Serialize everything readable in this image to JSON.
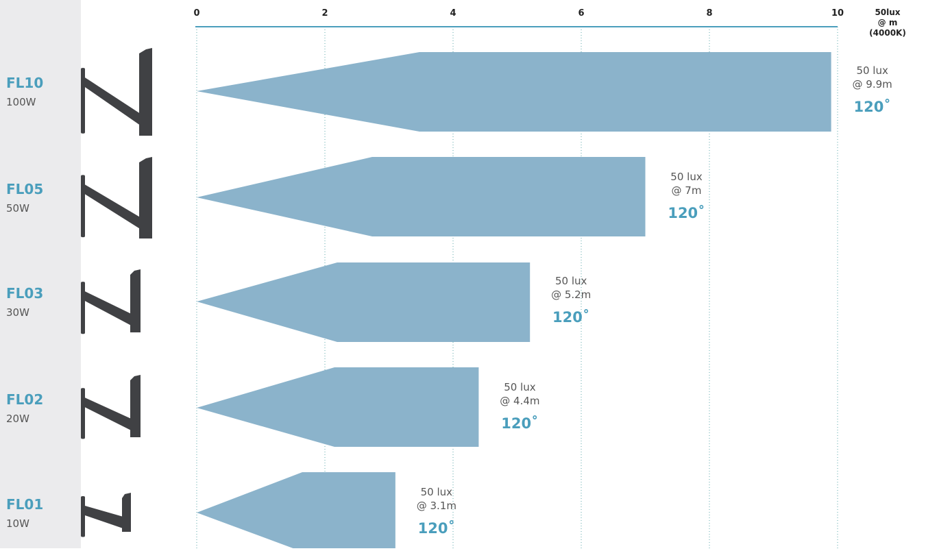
{
  "colors": {
    "accent": "#4a9ebc",
    "beam": "#8bb3cb",
    "fixture": "#404144",
    "sidebar": "#ebebed",
    "axis_line": "#4a9ebc"
  },
  "chart_data": {
    "type": "bar",
    "title": "",
    "xlabel": "50lux @ m (4000K)",
    "xlabel_lines": [
      "50lux",
      "@ m",
      "(4000K)"
    ],
    "ylabel": "",
    "xlim": [
      0,
      10
    ],
    "x_ticks": [
      "0",
      "2",
      "4",
      "6",
      "8",
      "10"
    ],
    "grid": true,
    "categories": [
      "FL10",
      "FL05",
      "FL03",
      "FL02",
      "FL01"
    ],
    "powers": [
      "100W",
      "50W",
      "30W",
      "20W",
      "10W"
    ],
    "values": [
      9.9,
      7,
      5.2,
      4.4,
      3.1
    ],
    "lux_labels": [
      "50 lux",
      "50 lux",
      "50 lux",
      "50 lux",
      "50 lux"
    ],
    "distance_labels": [
      "@ 9.9m",
      "@ 7m",
      "@ 5.2m",
      "@ 4.4m",
      "@ 3.1m"
    ],
    "beam_angles": [
      "120˚",
      "120˚",
      "120˚",
      "120˚",
      "120˚"
    ]
  }
}
